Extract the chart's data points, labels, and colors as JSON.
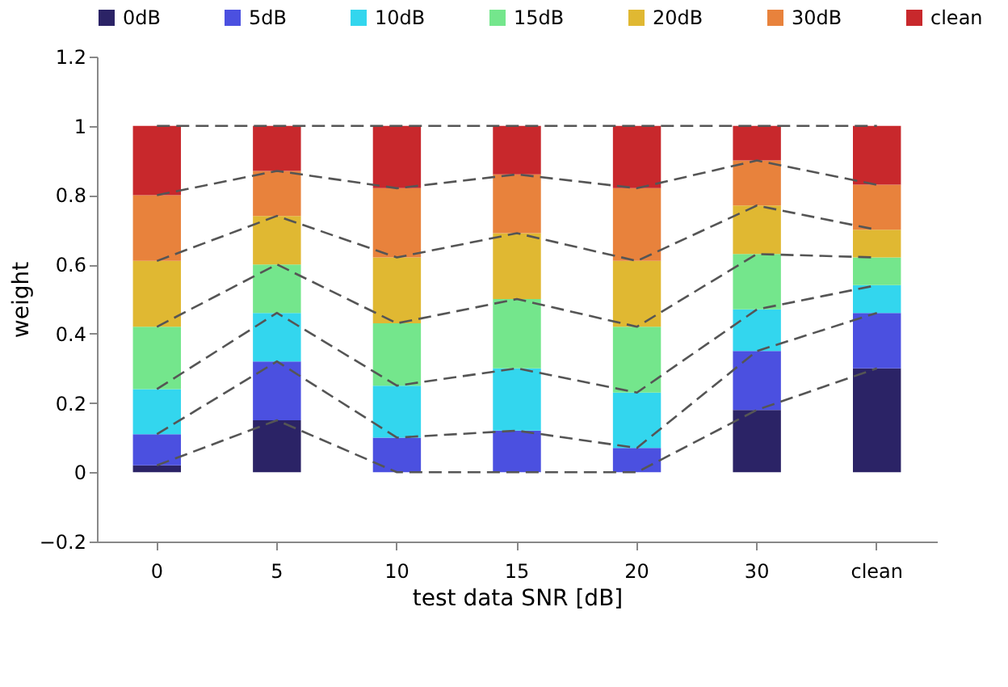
{
  "chart_data": {
    "type": "bar",
    "stacked": true,
    "xlabel": "test data SNR [dB]",
    "ylabel": "weight",
    "categories": [
      "0",
      "5",
      "10",
      "15",
      "20",
      "30",
      "clean"
    ],
    "series": [
      {
        "name": "0dB",
        "color": "#2b2366",
        "values": [
          0.02,
          0.15,
          0,
          0,
          0,
          0.18,
          0.3
        ]
      },
      {
        "name": "5dB",
        "color": "#4b50e0",
        "values": [
          0.09,
          0.17,
          0.1,
          0.12,
          0.07,
          0.17,
          0.16
        ]
      },
      {
        "name": "10dB",
        "color": "#33d6ee",
        "values": [
          0.13,
          0.14,
          0.15,
          0.18,
          0.16,
          0.12,
          0.08
        ]
      },
      {
        "name": "15dB",
        "color": "#74e68c",
        "values": [
          0.18,
          0.14,
          0.18,
          0.2,
          0.19,
          0.16,
          0.08
        ]
      },
      {
        "name": "20dB",
        "color": "#e0b832",
        "values": [
          0.19,
          0.14,
          0.19,
          0.19,
          0.19,
          0.14,
          0.08
        ]
      },
      {
        "name": "30dB",
        "color": "#e8823c",
        "values": [
          0.19,
          0.13,
          0.2,
          0.17,
          0.21,
          0.13,
          0.13
        ]
      },
      {
        "name": "clean",
        "color": "#c8282c",
        "values": [
          0.2,
          0.13,
          0.18,
          0.14,
          0.18,
          0.1,
          0.17
        ]
      },
      {
        "type": "line",
        "line_style": "dashed",
        "color": "#555555",
        "values": [
          0.02,
          0.15,
          0,
          0,
          0,
          0.18,
          0.3
        ]
      },
      {
        "type": "line",
        "line_style": "dashed",
        "color": "#555555",
        "values": [
          0.11,
          0.32,
          0.1,
          0.12,
          0.07,
          0.35,
          0.46
        ]
      },
      {
        "type": "line",
        "line_style": "dashed",
        "color": "#555555",
        "values": [
          0.24,
          0.46,
          0.25,
          0.3,
          0.23,
          0.47,
          0.54
        ]
      },
      {
        "type": "line",
        "line_style": "dashed",
        "color": "#555555",
        "values": [
          0.42,
          0.6,
          0.43,
          0.5,
          0.42,
          0.63,
          0.62
        ]
      },
      {
        "type": "line",
        "line_style": "dashed",
        "color": "#555555",
        "values": [
          0.61,
          0.74,
          0.62,
          0.69,
          0.61,
          0.77,
          0.7
        ]
      },
      {
        "type": "line",
        "line_style": "dashed",
        "color": "#555555",
        "values": [
          0.8,
          0.87,
          0.82,
          0.86,
          0.82,
          0.9,
          0.83
        ]
      },
      {
        "type": "line",
        "line_style": "dashed",
        "color": "#555555",
        "values": [
          1,
          1,
          1,
          1,
          1,
          1,
          1
        ]
      }
    ],
    "ylim": [
      -0.2,
      1.2
    ],
    "yticks": [
      -0.2,
      0,
      0.2,
      0.4,
      0.6,
      0.8,
      1,
      1.2
    ],
    "marker": "none",
    "grid": false,
    "legend": "top"
  }
}
